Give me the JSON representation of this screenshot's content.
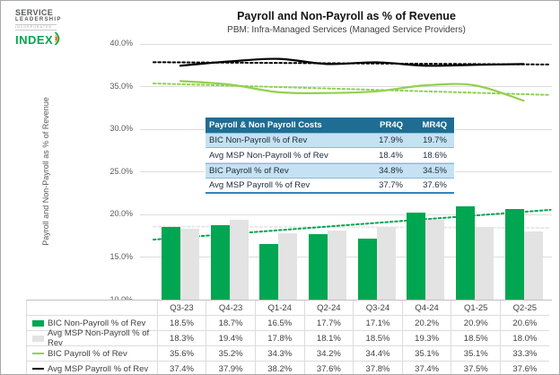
{
  "logo": {
    "line1": "SERVICE",
    "line2": "LEADERSHIP",
    "line3": "INCORPORATED",
    "line4": "INDEX"
  },
  "title": "Payroll and Non-Payroll as % of Revenue",
  "subtitle": "PBM: Infra-Managed Services (Managed Service Providers)",
  "colors": {
    "bic_green": "#00a651",
    "msp_gray": "#e3e3e3",
    "bic_line_green": "#92d050",
    "msp_line_black": "#000000",
    "msp_bar_trend": "#e8e8e8",
    "summary_header_bg": "#1f6d93",
    "summary_highlight_bg": "#c5e2f2",
    "grid": "#dcdcdc"
  },
  "overlay_table": {
    "header": {
      "label": "Payroll & Non Payroll Costs",
      "col1": "PR4Q",
      "col2": "MR4Q"
    },
    "rows": [
      {
        "label": "BIC Non-Payroll % of Rev",
        "pr4q": "17.9%",
        "mr4q": "19.7%",
        "highlight": true
      },
      {
        "label": "Avg MSP Non-Payroll % of Rev",
        "pr4q": "18.4%",
        "mr4q": "18.6%",
        "highlight": false
      },
      {
        "label": "BIC Payroll % of Rev",
        "pr4q": "34.8%",
        "mr4q": "34.5%",
        "highlight": true
      },
      {
        "label": "Avg MSP Payroll % of Rev",
        "pr4q": "37.7%",
        "mr4q": "37.6%",
        "highlight": false
      }
    ]
  },
  "chart_data": {
    "type": "combo",
    "title": "Payroll and Non-Payroll as % of Revenue",
    "subtitle": "PBM: Infra-Managed Services (Managed Service Providers)",
    "ylabel": "Payroll and Non-Payroll as % of Revenue",
    "xlabel": "",
    "ylim": [
      10,
      40
    ],
    "ytick_step": 5,
    "ytick_format": "percent_1dp",
    "grid": true,
    "legend_position": "bottom-data-table",
    "categories": [
      "Q3-23",
      "Q4-23",
      "Q1-24",
      "Q2-24",
      "Q3-24",
      "Q4-24",
      "Q1-25",
      "Q2-25"
    ],
    "series": [
      {
        "name": "BIC Non-Payroll % of Rev",
        "type": "bar",
        "color": "#00a651",
        "values": [
          18.5,
          18.7,
          16.5,
          17.7,
          17.1,
          20.2,
          20.9,
          20.6
        ],
        "trendline": true,
        "trend_color": "#00a651"
      },
      {
        "name": "Avg MSP Non-Payroll % of Rev",
        "type": "bar",
        "color": "#e3e3e3",
        "values": [
          18.3,
          19.4,
          17.8,
          18.1,
          18.5,
          19.3,
          18.5,
          18.0
        ],
        "trendline": true,
        "trend_color": "#e8e8e8"
      },
      {
        "name": "BIC Payroll % of Rev",
        "type": "line",
        "color": "#92d050",
        "values": [
          35.6,
          35.2,
          34.3,
          34.2,
          34.4,
          35.1,
          35.1,
          33.3
        ],
        "trendline": true,
        "trend_color": "#92d050"
      },
      {
        "name": "Avg MSP Payroll % of Rev",
        "type": "line",
        "color": "#000000",
        "values": [
          37.4,
          37.9,
          38.2,
          37.6,
          37.8,
          37.4,
          37.5,
          37.6
        ],
        "trendline": true,
        "trend_color": "#000000"
      }
    ]
  }
}
